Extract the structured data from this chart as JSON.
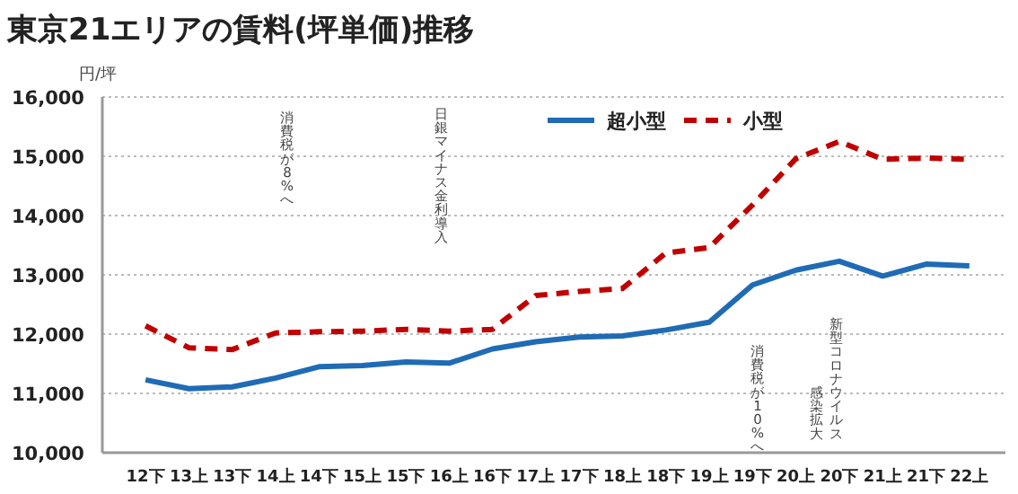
{
  "chart_data": {
    "type": "line",
    "title": "東京21エリアの賃料(坪単価)推移",
    "ylabel": "円/坪",
    "categories": [
      "12下",
      "13上",
      "13下",
      "14上",
      "14下",
      "15上",
      "15下",
      "16上",
      "16下",
      "17上",
      "17下",
      "18上",
      "18下",
      "19上",
      "19下",
      "20上",
      "20下",
      "21上",
      "21下",
      "22上"
    ],
    "series": [
      {
        "name": "超小型",
        "color": "#1f6bb5",
        "line_style": "solid",
        "values": [
          11230,
          11080,
          11110,
          11260,
          11450,
          11470,
          11530,
          11510,
          11750,
          11870,
          11950,
          11970,
          12070,
          12200,
          12830,
          13080,
          13230,
          12980,
          13180,
          13150
        ]
      },
      {
        "name": "小型",
        "color": "#c00000",
        "line_style": "dashed",
        "values": [
          12140,
          11770,
          11740,
          12020,
          12040,
          12050,
          12080,
          12050,
          12080,
          12650,
          12720,
          12770,
          13370,
          13460,
          14180,
          14960,
          15250,
          14950,
          14970,
          14950
        ]
      }
    ],
    "ylim": [
      10000,
      16000
    ],
    "yticks": [
      {
        "value": 10000,
        "label": "10,000"
      },
      {
        "value": 11000,
        "label": "11,000"
      },
      {
        "value": 12000,
        "label": "12,000"
      },
      {
        "value": 13000,
        "label": "13,000"
      },
      {
        "value": 14000,
        "label": "14,000"
      },
      {
        "value": 15000,
        "label": "15,000"
      },
      {
        "value": 16000,
        "label": "16,000"
      }
    ],
    "grid": "y",
    "legend": "top",
    "marker": "none",
    "annotations": [
      "消費税が8%へ",
      "日銀マイナス金利導入",
      "消費税が10%へ",
      "新型コロナウイルス感染拡大"
    ]
  }
}
